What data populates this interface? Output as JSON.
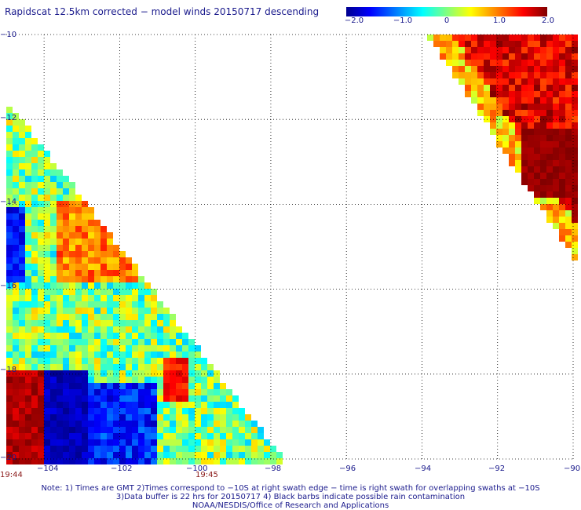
{
  "title": "Rapidscat 12.5km corrected − model winds 20150717 descending",
  "colorbar": {
    "labels": [
      "−2.0",
      "−1.0",
      "0",
      "1.0",
      "2.0"
    ],
    "values": [
      -2.0,
      -1.0,
      0,
      1.0,
      2.0
    ],
    "colors": [
      "#00008f",
      "#0000ff",
      "#0080ff",
      "#00ffff",
      "#80ff80",
      "#ffff00",
      "#ff8000",
      "#ff0000",
      "#800000"
    ]
  },
  "map": {
    "lon_range": [
      -105,
      -90
    ],
    "lat_range": [
      -20,
      -10
    ],
    "lon_ticks": [
      -104,
      -102,
      -100,
      -98,
      -96,
      -94,
      -92,
      -90
    ],
    "lon_labels": [
      "−104",
      "−102",
      "−100",
      "−98",
      "−96",
      "−94",
      "−92",
      "−90"
    ],
    "lat_ticks": [
      -10,
      -12,
      -14,
      -16,
      -18,
      -20
    ],
    "lat_labels": [
      "−10",
      "−12",
      "−14",
      "−16",
      "−18",
      "−20"
    ],
    "grid_style": "dotted"
  },
  "swaths": [
    {
      "id": "left",
      "note": "southwest swath, mostly near zero with negative (blue) pockets and positive (red) near -105/-19"
    },
    {
      "id": "right",
      "note": "northeast swath, strongly positive (red)"
    }
  ],
  "time_labels": [
    {
      "text": "19:44",
      "lon": -105
    },
    {
      "text": "19:45",
      "lon": -100
    }
  ],
  "notes": [
    "Note: 1) Times are GMT 2)Times correspond to −10S at right swath edge − time is right swath for overlapping swaths at −10S",
    "3)Data buffer is 22 hrs for 20150717 4) Black barbs indicate possible rain contamination",
    "NOAA/NESDIS/Office of Research and Applications"
  ]
}
